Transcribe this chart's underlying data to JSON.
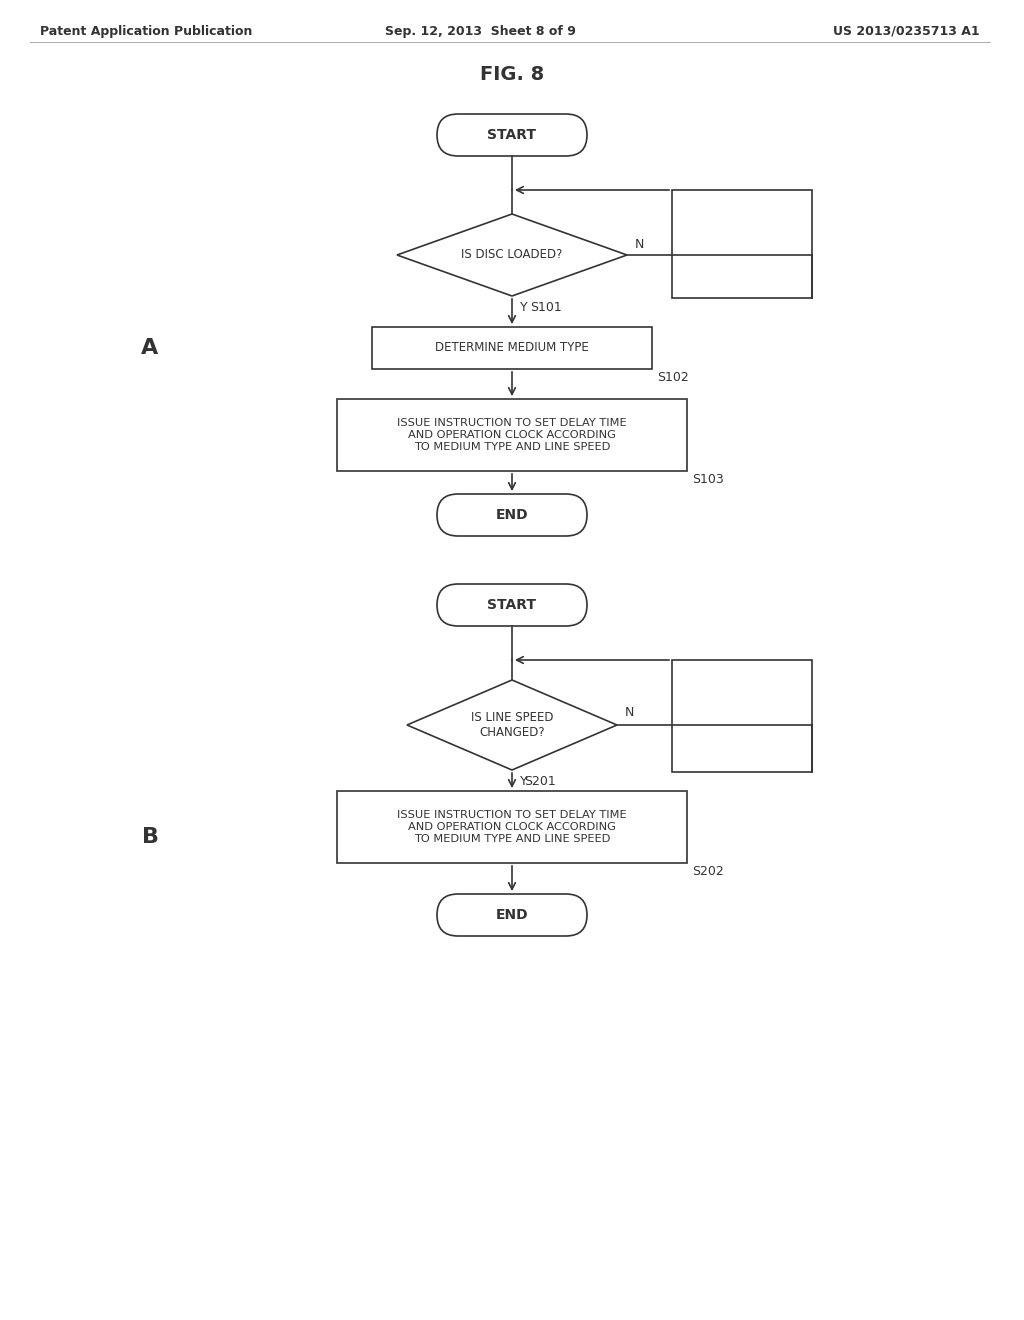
{
  "bg_color": "#ffffff",
  "line_color": "#333333",
  "text_color": "#333333",
  "header_left": "Patent Application Publication",
  "header_center": "Sep. 12, 2013  Sheet 8 of 9",
  "header_right": "US 2013/0235713 A1",
  "fig_title": "FIG. 8",
  "label_A": "A",
  "label_B": "B",
  "flowA": {
    "start_text": "START",
    "diamond_text": "IS DISC LOADED?",
    "diamond_label": "S101",
    "diamond_N": "N",
    "diamond_Y": "Y",
    "box1_text": "DETERMINE MEDIUM TYPE",
    "box1_label": "S102",
    "box2_text": "ISSUE INSTRUCTION TO SET DELAY TIME\nAND OPERATION CLOCK ACCORDING\nTO MEDIUM TYPE AND LINE SPEED",
    "box2_label": "S103",
    "end_text": "END"
  },
  "flowB": {
    "start_text": "START",
    "diamond_text": "IS LINE SPEED\nCHANGED?",
    "diamond_label": "S201",
    "diamond_N": "N",
    "diamond_Y": "Y",
    "box1_text": "ISSUE INSTRUCTION TO SET DELAY TIME\nAND OPERATION CLOCK ACCORDING\nTO MEDIUM TYPE AND LINE SPEED",
    "box1_label": "S202",
    "end_text": "END"
  }
}
